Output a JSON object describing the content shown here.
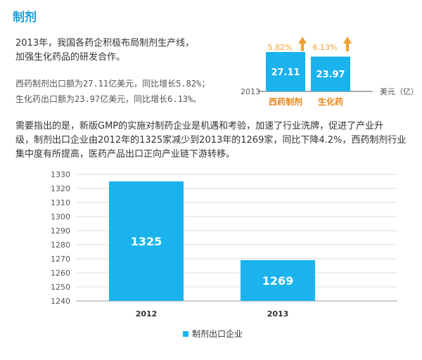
{
  "section_title": "制剂",
  "intro_lines": [
    "2013年，我国各药企积极布局制剂生产线，",
    "加强生化药品的研发合作。"
  ],
  "stat_lines": [
    "西药制剂出口额为27.11亿美元，同比增长5.82%；",
    "生化药出口额为23.97亿美元，同比增长6.13%。"
  ],
  "body_lines": [
    "需要指出的是，新版GMP的实施对制药企业是机遇和考验，加速了行业洗牌，促进了产业升",
    "级，制剂出口企业由2012年的1325家减少到2013年的1269家，同比下降4.2%，西药制剂行业",
    "集中度有所提高，医药产品出口正向产业链下游转移。"
  ],
  "colors": {
    "accent": "#1a9fd9",
    "bar": "#1ab3ee",
    "growth": "#f0a030",
    "label_orange": "#e8851a",
    "grid": "#dddddd"
  },
  "chart_data": [
    {
      "type": "bar",
      "title": "",
      "year_label": "2013",
      "unit_label": "美元（亿）",
      "categories": [
        "西药制剂",
        "生化药"
      ],
      "values": [
        27.11,
        23.97
      ],
      "value_labels": [
        "27.11",
        "23.97"
      ],
      "growth_labels": [
        "5.82%",
        "6.13%"
      ],
      "growth_arrow_icon": "up-arrow-icon",
      "ylim": [
        0,
        30
      ]
    },
    {
      "type": "bar",
      "title": "",
      "categories": [
        "2012",
        "2013"
      ],
      "values": [
        1325,
        1269
      ],
      "value_labels": [
        "1325",
        "1269"
      ],
      "ylim": [
        1240,
        1330
      ],
      "yticks": [
        "1330",
        "1320",
        "1310",
        "1300",
        "1290",
        "1280",
        "1270",
        "1260",
        "1250",
        "1240"
      ],
      "xlabel": "",
      "ylabel": "",
      "legend": [
        "制剂出口企业"
      ],
      "grid": true
    }
  ]
}
